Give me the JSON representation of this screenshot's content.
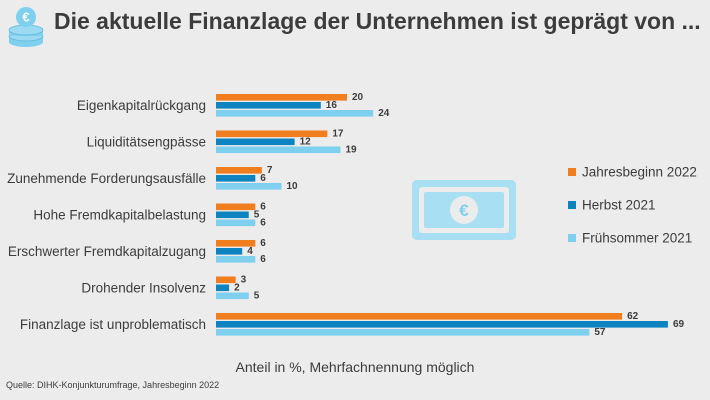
{
  "header": {
    "title": "Die aktuelle Finanzlage der Unternehmen ist geprägt von ...",
    "logo_icon": "coin-stack-euro-icon"
  },
  "decoration": {
    "icon": "euro-banknote-icon"
  },
  "footer": {
    "source": "Quelle: DIHK-Konjunkturumfrage, Jahresbeginn 2022"
  },
  "chart_data": {
    "type": "bar",
    "orientation": "horizontal",
    "title": "Die aktuelle Finanzlage der Unternehmen ist geprägt von ...",
    "xlabel": "Anteil in %, Mehrfachnennung möglich",
    "ylabel": "",
    "xlim": [
      0,
      70
    ],
    "grid": false,
    "legend_position": "right",
    "categories": [
      "Eigenkapitalrückgang",
      "Liquiditätsengpässe",
      "Zunehmende Forderungsausfälle",
      "Hohe Fremdkapitalbelastung",
      "Erschwerter Fremdkapitalzugang",
      "Drohender Insolvenz",
      "Finanzlage ist unproblematisch"
    ],
    "series": [
      {
        "name": "Jahresbeginn 2022",
        "color": "#f07d1e",
        "values": [
          20,
          17,
          7,
          6,
          6,
          3,
          62
        ]
      },
      {
        "name": "Herbst 2021",
        "color": "#0d84c0",
        "values": [
          16,
          12,
          6,
          5,
          4,
          2,
          69
        ]
      },
      {
        "name": "Frühsommer 2021",
        "color": "#7fcfee",
        "values": [
          24,
          19,
          10,
          6,
          6,
          5,
          57
        ]
      }
    ]
  }
}
